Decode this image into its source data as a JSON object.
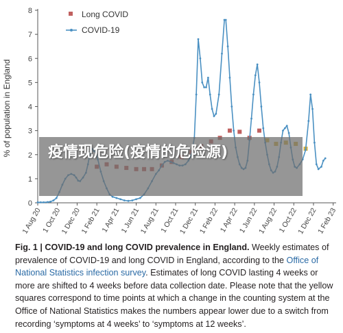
{
  "chart_data": {
    "type": "line",
    "ylabel": "% of population in England",
    "ylim": [
      0,
      8
    ],
    "yticks": [
      0,
      1,
      2,
      3,
      4,
      5,
      6,
      7,
      8
    ],
    "x_ticks": [
      "1 Aug 20",
      "1 Oct 20",
      "1 Dec 20",
      "1 Feb 21",
      "1 Apr 21",
      "1 Jun 21",
      "1 Aug 21",
      "1 Oct 21",
      "1 Dec 21",
      "1 Feb 22",
      "1 Apr 22",
      "1 Jun 22",
      "1 Aug 22",
      "1 Oct 22",
      "1 Dec 22",
      "1 Feb 23"
    ],
    "x_range_months": [
      0,
      30.3
    ],
    "grid": false,
    "legend_placement": "top-left",
    "series": [
      {
        "name": "Long COVID",
        "kind": "squares",
        "color": "#c0605f",
        "points": [
          [
            6.0,
            1.5
          ],
          [
            7.0,
            1.6
          ],
          [
            8.0,
            1.5
          ],
          [
            9.0,
            1.45
          ],
          [
            10.0,
            1.4
          ],
          [
            10.8,
            1.4
          ],
          [
            11.6,
            1.4
          ],
          [
            12.6,
            1.55
          ],
          [
            13.6,
            1.7
          ],
          [
            14.6,
            1.9
          ],
          [
            15.6,
            2.1
          ],
          [
            16.6,
            2.35
          ],
          [
            17.6,
            2.55
          ],
          [
            18.5,
            2.7
          ],
          [
            19.5,
            3.0
          ],
          [
            20.5,
            2.95
          ],
          [
            21.5,
            2.7
          ],
          [
            22.5,
            3.0
          ]
        ],
        "yellow_points": [
          [
            23.3,
            2.6
          ],
          [
            24.2,
            2.45
          ],
          [
            25.2,
            2.5
          ],
          [
            26.2,
            2.45
          ],
          [
            27.2,
            2.25
          ]
        ],
        "yellow_color": "#d8b23e"
      },
      {
        "name": "COVID-19",
        "kind": "line",
        "color": "#4a90c2",
        "points": [
          [
            0,
            0.02
          ],
          [
            0.3,
            0.02
          ],
          [
            0.6,
            0.02
          ],
          [
            1.0,
            0.03
          ],
          [
            1.3,
            0.05
          ],
          [
            1.6,
            0.1
          ],
          [
            1.9,
            0.2
          ],
          [
            2.2,
            0.45
          ],
          [
            2.5,
            0.75
          ],
          [
            2.8,
            1.0
          ],
          [
            3.1,
            1.15
          ],
          [
            3.4,
            1.2
          ],
          [
            3.7,
            1.15
          ],
          [
            3.9,
            1.05
          ],
          [
            4.1,
            0.92
          ],
          [
            4.3,
            0.9
          ],
          [
            4.6,
            1.05
          ],
          [
            4.9,
            1.25
          ],
          [
            5.1,
            1.6
          ],
          [
            5.3,
            2.05
          ],
          [
            5.5,
            2.25
          ],
          [
            5.7,
            2.15
          ],
          [
            5.9,
            2.1
          ],
          [
            6.1,
            1.8
          ],
          [
            6.4,
            1.3
          ],
          [
            6.7,
            0.9
          ],
          [
            7.0,
            0.6
          ],
          [
            7.3,
            0.35
          ],
          [
            7.6,
            0.25
          ],
          [
            8.0,
            0.2
          ],
          [
            8.4,
            0.15
          ],
          [
            8.8,
            0.1
          ],
          [
            9.2,
            0.08
          ],
          [
            9.6,
            0.1
          ],
          [
            10.0,
            0.15
          ],
          [
            10.4,
            0.2
          ],
          [
            10.8,
            0.35
          ],
          [
            11.2,
            0.6
          ],
          [
            11.6,
            0.9
          ],
          [
            12.0,
            1.2
          ],
          [
            12.3,
            1.35
          ],
          [
            12.6,
            1.55
          ],
          [
            12.9,
            1.7
          ],
          [
            13.2,
            1.75
          ],
          [
            13.5,
            1.7
          ],
          [
            13.8,
            1.65
          ],
          [
            14.1,
            1.6
          ],
          [
            14.4,
            1.55
          ],
          [
            14.7,
            1.55
          ],
          [
            15.0,
            1.6
          ],
          [
            15.3,
            1.75
          ],
          [
            15.6,
            2.0
          ],
          [
            15.9,
            2.7
          ],
          [
            16.1,
            4.5
          ],
          [
            16.3,
            6.8
          ],
          [
            16.5,
            6.0
          ],
          [
            16.7,
            5.0
          ],
          [
            16.9,
            4.8
          ],
          [
            17.1,
            4.8
          ],
          [
            17.3,
            5.2
          ],
          [
            17.5,
            4.5
          ],
          [
            17.7,
            3.9
          ],
          [
            17.9,
            3.6
          ],
          [
            18.1,
            3.7
          ],
          [
            18.4,
            4.5
          ],
          [
            18.7,
            6.2
          ],
          [
            18.95,
            7.6
          ],
          [
            19.1,
            7.6
          ],
          [
            19.3,
            6.5
          ],
          [
            19.5,
            5.2
          ],
          [
            19.7,
            4.0
          ],
          [
            19.9,
            3.0
          ],
          [
            20.1,
            2.3
          ],
          [
            20.3,
            1.9
          ],
          [
            20.5,
            1.6
          ],
          [
            20.7,
            1.45
          ],
          [
            20.9,
            1.4
          ],
          [
            21.1,
            1.45
          ],
          [
            21.3,
            1.75
          ],
          [
            21.5,
            2.6
          ],
          [
            21.7,
            3.5
          ],
          [
            21.9,
            4.5
          ],
          [
            22.1,
            5.3
          ],
          [
            22.3,
            5.75
          ],
          [
            22.5,
            5.0
          ],
          [
            22.7,
            4.0
          ],
          [
            22.9,
            3.1
          ],
          [
            23.1,
            2.5
          ],
          [
            23.3,
            2.0
          ],
          [
            23.5,
            1.6
          ],
          [
            23.7,
            1.35
          ],
          [
            23.9,
            1.25
          ],
          [
            24.1,
            1.3
          ],
          [
            24.3,
            1.5
          ],
          [
            24.5,
            1.9
          ],
          [
            24.7,
            2.5
          ],
          [
            24.9,
            3.0
          ],
          [
            25.1,
            3.1
          ],
          [
            25.3,
            3.2
          ],
          [
            25.5,
            2.9
          ],
          [
            25.7,
            2.3
          ],
          [
            25.9,
            1.8
          ],
          [
            26.1,
            1.5
          ],
          [
            26.3,
            1.45
          ],
          [
            26.6,
            1.6
          ],
          [
            26.9,
            1.8
          ],
          [
            27.2,
            2.2
          ],
          [
            27.5,
            3.4
          ],
          [
            27.7,
            4.5
          ],
          [
            27.9,
            3.9
          ],
          [
            28.1,
            2.5
          ],
          [
            28.3,
            1.6
          ],
          [
            28.5,
            1.4
          ],
          [
            28.8,
            1.5
          ],
          [
            29.0,
            1.75
          ],
          [
            29.2,
            1.85
          ]
        ]
      }
    ]
  },
  "caption": {
    "fig_label": "Fig. 1 | COVID-19 and long COVID prevalence in England.",
    "part1": " Weekly estimates of prevalence of COVID-19 and long COVID in England, according to the ",
    "link": "Office of National Statistics infection survey",
    "part2": ". Estimates of long COVID lasting 4 weeks or more are shifted to 4 weeks before data collection date. Please note that the yellow squares correspond to time points at which a change in the counting system at the Office of National Statistics makes the numbers appear lower due to a switch from recording ‘symptoms at 4 weeks’ to ‘symptoms at 12 weeks’."
  },
  "overlay": {
    "text": "疫情现危险(疫情的危险源)"
  }
}
